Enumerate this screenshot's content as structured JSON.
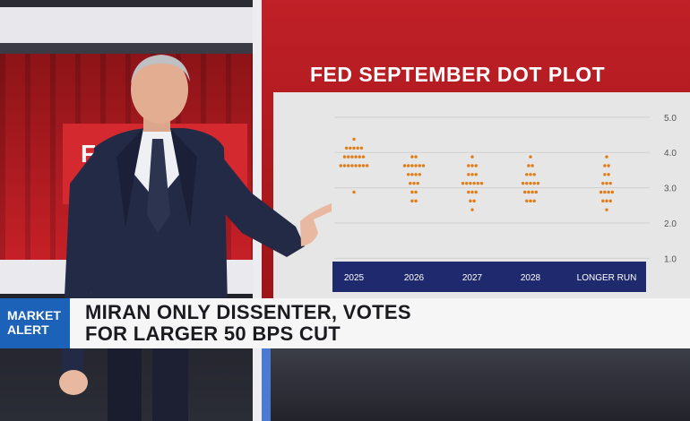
{
  "screen": {
    "title": "FED SEPTEMBER DOT PLOT",
    "left_monitor_text": "FED"
  },
  "lower_third": {
    "tag_line1": "MARKET",
    "tag_line2": "ALERT",
    "headline_line1": "MIRAN ONLY DISSENTER, VOTES",
    "headline_line2": "FOR LARGER 50 BPS CUT"
  },
  "colors": {
    "dot": "#e07b16",
    "axis_bar": "#1f2a6e",
    "screen_red": "#b3191f",
    "alert_blue": "#1c62b8"
  },
  "chart_data": {
    "type": "scatter",
    "title": "FED SEPTEMBER DOT PLOT",
    "categories": [
      "2025",
      "2026",
      "2027",
      "2028",
      "LONGER RUN"
    ],
    "y_ticks": [
      "5.0",
      "4.0",
      "3.0",
      "2.0",
      "1.0"
    ],
    "ylim": [
      0.5,
      5.3
    ],
    "series": [
      {
        "category": "2025",
        "levels": [
          {
            "y": 4.375,
            "n": 1
          },
          {
            "y": 4.125,
            "n": 5
          },
          {
            "y": 3.875,
            "n": 6
          },
          {
            "y": 3.625,
            "n": 8
          },
          {
            "y": 3.375,
            "n": 0
          },
          {
            "y": 2.875,
            "n": 1
          }
        ]
      },
      {
        "category": "2026",
        "levels": [
          {
            "y": 3.875,
            "n": 2
          },
          {
            "y": 3.625,
            "n": 6
          },
          {
            "y": 3.375,
            "n": 4
          },
          {
            "y": 3.125,
            "n": 3
          },
          {
            "y": 2.875,
            "n": 2
          },
          {
            "y": 2.625,
            "n": 2
          }
        ]
      },
      {
        "category": "2027",
        "levels": [
          {
            "y": 3.875,
            "n": 1
          },
          {
            "y": 3.625,
            "n": 3
          },
          {
            "y": 3.375,
            "n": 3
          },
          {
            "y": 3.125,
            "n": 6
          },
          {
            "y": 2.875,
            "n": 3
          },
          {
            "y": 2.625,
            "n": 2
          },
          {
            "y": 2.375,
            "n": 1
          }
        ]
      },
      {
        "category": "2028",
        "levels": [
          {
            "y": 3.875,
            "n": 1
          },
          {
            "y": 3.625,
            "n": 2
          },
          {
            "y": 3.375,
            "n": 3
          },
          {
            "y": 3.125,
            "n": 5
          },
          {
            "y": 2.875,
            "n": 4
          },
          {
            "y": 2.625,
            "n": 3
          }
        ]
      },
      {
        "category": "LONGER RUN",
        "levels": [
          {
            "y": 3.875,
            "n": 1
          },
          {
            "y": 3.625,
            "n": 2
          },
          {
            "y": 3.375,
            "n": 2
          },
          {
            "y": 3.125,
            "n": 3
          },
          {
            "y": 2.875,
            "n": 4
          },
          {
            "y": 2.625,
            "n": 3
          },
          {
            "y": 2.375,
            "n": 1
          }
        ]
      }
    ],
    "grid": true,
    "xlabel": "",
    "ylabel": ""
  }
}
